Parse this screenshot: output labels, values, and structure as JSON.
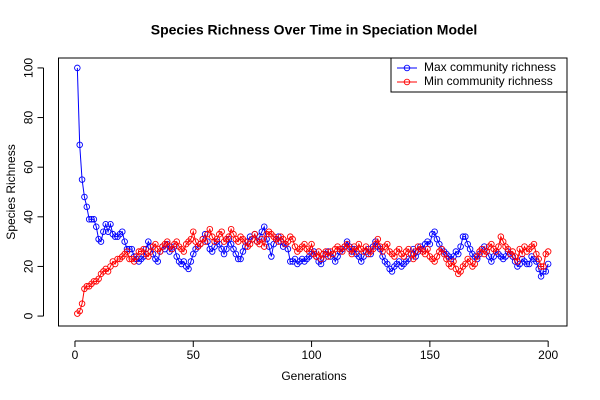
{
  "chart_data": {
    "type": "line",
    "title": "Species Richness Over Time in Speciation Model",
    "x_label": "Generations",
    "y_label": "Species Richness",
    "x": [
      1,
      2,
      3,
      4,
      5,
      6,
      7,
      8,
      9,
      10,
      11,
      12,
      13,
      14,
      15,
      16,
      17,
      18,
      19,
      20,
      21,
      22,
      23,
      24,
      25,
      26,
      27,
      28,
      29,
      30,
      31,
      32,
      33,
      34,
      35,
      36,
      37,
      38,
      39,
      40,
      41,
      42,
      43,
      44,
      45,
      46,
      47,
      48,
      49,
      50,
      51,
      52,
      53,
      54,
      55,
      56,
      57,
      58,
      59,
      60,
      61,
      62,
      63,
      64,
      65,
      66,
      67,
      68,
      69,
      70,
      71,
      72,
      73,
      74,
      75,
      76,
      77,
      78,
      79,
      80,
      81,
      82,
      83,
      84,
      85,
      86,
      87,
      88,
      89,
      90,
      91,
      92,
      93,
      94,
      95,
      96,
      97,
      98,
      99,
      100,
      101,
      102,
      103,
      104,
      105,
      106,
      107,
      108,
      109,
      110,
      111,
      112,
      113,
      114,
      115,
      116,
      117,
      118,
      119,
      120,
      121,
      122,
      123,
      124,
      125,
      126,
      127,
      128,
      129,
      130,
      131,
      132,
      133,
      134,
      135,
      136,
      137,
      138,
      139,
      140,
      141,
      142,
      143,
      144,
      145,
      146,
      147,
      148,
      149,
      150,
      151,
      152,
      153,
      154,
      155,
      156,
      157,
      158,
      159,
      160,
      161,
      162,
      163,
      164,
      165,
      166,
      167,
      168,
      169,
      170,
      171,
      172,
      173,
      174,
      175,
      176,
      177,
      178,
      179,
      180,
      181,
      182,
      183,
      184,
      185,
      186,
      187,
      188,
      189,
      190,
      191,
      192,
      193,
      194,
      195,
      196,
      197,
      198,
      199,
      200
    ],
    "series": [
      {
        "name": "Max community richness",
        "color": "#0000ff",
        "values": [
          100,
          69,
          55,
          48,
          44,
          39,
          39,
          39,
          36,
          31,
          30,
          34,
          37,
          34,
          37,
          33,
          32,
          32,
          33,
          34,
          30,
          27,
          27,
          27,
          24,
          23,
          22,
          23,
          24,
          27,
          30,
          28,
          25,
          23,
          22,
          26,
          28,
          27,
          29,
          26,
          27,
          28,
          24,
          22,
          21,
          22,
          20,
          19,
          22,
          25,
          27,
          28,
          29,
          31,
          33,
          30,
          27,
          26,
          28,
          30,
          29,
          27,
          25,
          27,
          31,
          29,
          27,
          25,
          23,
          23,
          26,
          28,
          30,
          32,
          31,
          33,
          30,
          32,
          34,
          36,
          31,
          28,
          24,
          29,
          31,
          32,
          30,
          28,
          29,
          27,
          22,
          22,
          23,
          21,
          22,
          23,
          22,
          23,
          24,
          25,
          26,
          24,
          22,
          21,
          23,
          25,
          26,
          24,
          25,
          22,
          24,
          26,
          27,
          28,
          30,
          28,
          26,
          27,
          25,
          24,
          22,
          24,
          26,
          27,
          25,
          28,
          30,
          28,
          27,
          24,
          22,
          21,
          19,
          18,
          20,
          21,
          22,
          20,
          21,
          22,
          23,
          25,
          27,
          24,
          26,
          28,
          27,
          29,
          30,
          29,
          33,
          34,
          31,
          29,
          27,
          26,
          25,
          24,
          23,
          24,
          26,
          25,
          28,
          32,
          32,
          29,
          27,
          25,
          24,
          23,
          25,
          27,
          28,
          26,
          24,
          22,
          24,
          26,
          25,
          24,
          23,
          24,
          26,
          25,
          24,
          22,
          20,
          21,
          23,
          22,
          21,
          21,
          24,
          23,
          22,
          19,
          16,
          18,
          18,
          21
        ]
      },
      {
        "name": "Min community richness",
        "color": "#ff0000",
        "values": [
          1,
          2,
          5,
          11,
          12,
          12,
          13,
          14,
          14,
          15,
          17,
          18,
          19,
          18,
          20,
          22,
          21,
          23,
          23,
          24,
          25,
          26,
          23,
          23,
          22,
          24,
          26,
          26,
          27,
          25,
          24,
          26,
          28,
          29,
          27,
          26,
          28,
          29,
          30,
          28,
          27,
          29,
          30,
          28,
          27,
          26,
          29,
          30,
          31,
          34,
          30,
          28,
          29,
          31,
          30,
          33,
          35,
          32,
          30,
          31,
          33,
          34,
          30,
          31,
          32,
          35,
          33,
          31,
          30,
          32,
          31,
          30,
          28,
          29,
          31,
          33,
          30,
          29,
          31,
          28,
          33,
          34,
          33,
          32,
          31,
          30,
          32,
          31,
          29,
          30,
          32,
          31,
          28,
          26,
          27,
          28,
          29,
          27,
          26,
          29,
          25,
          24,
          26,
          23,
          25,
          26,
          24,
          26,
          25,
          27,
          28,
          27,
          26,
          28,
          29,
          27,
          25,
          28,
          26,
          29,
          27,
          26,
          28,
          25,
          26,
          27,
          29,
          31,
          28,
          26,
          28,
          29,
          26,
          25,
          24,
          26,
          27,
          25,
          24,
          26,
          27,
          25,
          23,
          26,
          28,
          27,
          26,
          25,
          27,
          24,
          23,
          22,
          24,
          26,
          27,
          25,
          23,
          21,
          20,
          22,
          19,
          17,
          18,
          20,
          21,
          23,
          22,
          20,
          21,
          24,
          26,
          27,
          25,
          26,
          28,
          29,
          27,
          26,
          28,
          32,
          30,
          28,
          27,
          25,
          26,
          24,
          22,
          27,
          25,
          28,
          26,
          27,
          28,
          29,
          25,
          23,
          20,
          20,
          25,
          26
        ]
      }
    ],
    "xlim": [
      -6.96,
      207.96
    ],
    "ylim": [
      -4,
      104
    ],
    "xticks": [
      0,
      50,
      100,
      150,
      200
    ],
    "yticks": [
      0,
      20,
      40,
      60,
      80,
      100
    ],
    "legend": "top-right"
  }
}
